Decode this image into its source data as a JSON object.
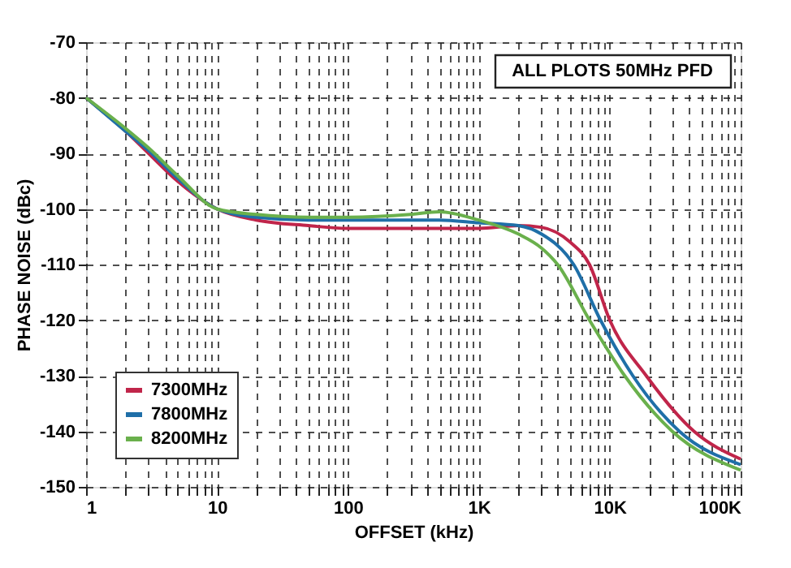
{
  "chart_data": {
    "type": "line",
    "xlabel": "OFFSET (kHz)",
    "ylabel": "PHASE NOISE (dBc)",
    "annotations": [
      "ALL PLOTS 50MHz PFD"
    ],
    "log": "x",
    "grid": true,
    "legend": "bottom left",
    "line_style": "solid",
    "marker": "none",
    "xlim": [
      1,
      100000
    ],
    "ylim": [
      -150,
      -70
    ],
    "xticks": [
      1,
      {
        "value": 2,
        "label": null
      },
      {
        "value": 3,
        "label": null
      },
      {
        "value": 4,
        "label": null
      },
      {
        "value": 5,
        "label": null
      },
      {
        "value": 6,
        "label": null
      },
      {
        "value": 7,
        "label": null
      },
      {
        "value": 8,
        "label": null
      },
      {
        "value": 9,
        "label": null
      },
      10,
      {
        "value": 20,
        "label": null
      },
      {
        "value": 30,
        "label": null
      },
      {
        "value": 40,
        "label": null
      },
      {
        "value": 50,
        "label": null
      },
      {
        "value": 60,
        "label": null
      },
      {
        "value": 70,
        "label": null
      },
      {
        "value": 80,
        "label": null
      },
      {
        "value": 90,
        "label": null
      },
      100,
      {
        "value": 200,
        "label": null
      },
      {
        "value": 300,
        "label": null
      },
      {
        "value": 400,
        "label": null
      },
      {
        "value": 500,
        "label": null
      },
      {
        "value": 600,
        "label": null
      },
      {
        "value": 700,
        "label": null
      },
      {
        "value": 800,
        "label": null
      },
      {
        "value": 900,
        "label": null
      },
      {
        "value": 1000,
        "label": "1K"
      },
      {
        "value": 2000,
        "label": null
      },
      {
        "value": 3000,
        "label": null
      },
      {
        "value": 4000,
        "label": null
      },
      {
        "value": 5000,
        "label": null
      },
      {
        "value": 6000,
        "label": null
      },
      {
        "value": 7000,
        "label": null
      },
      {
        "value": 8000,
        "label": null
      },
      {
        "value": 9000,
        "label": null
      },
      {
        "value": 10000,
        "label": "10K"
      },
      {
        "value": 20000,
        "label": null
      },
      {
        "value": 30000,
        "label": null
      },
      {
        "value": 40000,
        "label": null
      },
      {
        "value": 50000,
        "label": null
      },
      {
        "value": 60000,
        "label": null
      },
      {
        "value": 70000,
        "label": null
      },
      {
        "value": 80000,
        "label": null
      },
      {
        "value": 90000,
        "label": null
      },
      {
        "value": 100000,
        "label": "100K"
      }
    ],
    "yticks": [
      -150,
      -140,
      -130,
      -120,
      -110,
      -100,
      -90,
      -80,
      -70
    ],
    "series": [
      {
        "name": "7300MHz",
        "color": "#c0254a",
        "x": [
          1,
          2,
          3,
          5,
          10,
          20,
          50,
          100,
          300,
          1000,
          2000,
          3000,
          5000,
          7000,
          10000,
          19000,
          44000,
          100000
        ],
        "values": [
          -80,
          -86,
          -90,
          -95,
          -100,
          -102,
          -103,
          -103.5,
          -103.5,
          -103.5,
          -103,
          -103.3,
          -106,
          -110,
          -120,
          -130,
          -140,
          -145
        ]
      },
      {
        "name": "7800MHz",
        "color": "#1f6fa8",
        "x": [
          1,
          2,
          3,
          5,
          10,
          20,
          50,
          100,
          300,
          500,
          1000,
          2000,
          3000,
          5300,
          8500,
          15000,
          34000,
          100000
        ],
        "values": [
          -80,
          -86,
          -89.5,
          -94.5,
          -100,
          -101.5,
          -102,
          -102,
          -102,
          -102,
          -102.5,
          -103,
          -104.5,
          -110,
          -120,
          -130,
          -140,
          -146
        ]
      },
      {
        "name": "8200MHz",
        "color": "#6ab04c",
        "x": [
          1,
          2,
          3,
          5,
          10,
          20,
          50,
          100,
          300,
          500,
          1000,
          2000,
          3000,
          4000,
          7000,
          13000,
          30000,
          100000
        ],
        "values": [
          -80,
          -85.5,
          -89,
          -94,
          -100,
          -101,
          -101.5,
          -101.5,
          -101,
          -100.5,
          -102,
          -104.5,
          -107,
          -110,
          -120,
          -130,
          -140,
          -147
        ]
      }
    ]
  }
}
